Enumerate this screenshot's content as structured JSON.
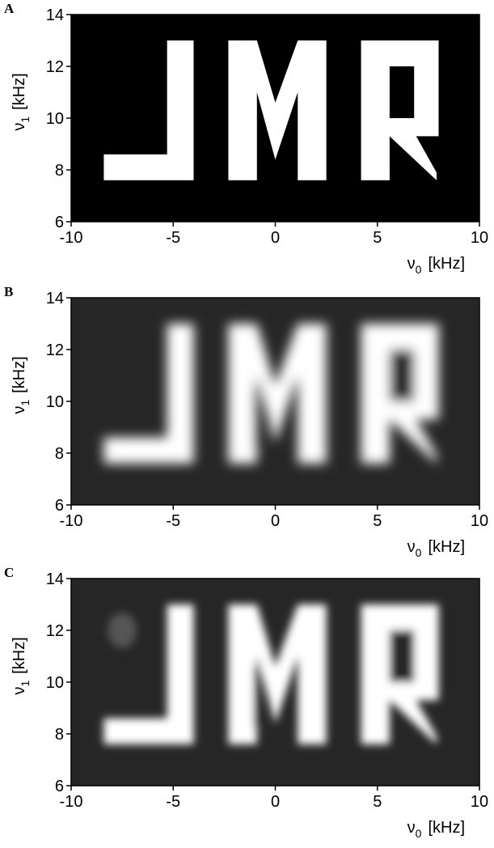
{
  "chart_data": [
    {
      "type": "image",
      "panel": "A",
      "xlim": [
        -10,
        10
      ],
      "ylim": [
        6,
        14
      ],
      "xticks": [
        -10,
        -5,
        0,
        5,
        10
      ],
      "yticks": [
        6,
        8,
        10,
        12,
        14
      ],
      "xlabel": {
        "symbol": "ν",
        "subscript": "0",
        "unit": "[kHz]"
      },
      "ylabel": {
        "symbol": "ν",
        "subscript": "1",
        "unit": "[kHz]"
      }
    },
    {
      "type": "image",
      "panel": "B",
      "xlim": [
        -10,
        10
      ],
      "ylim": [
        6,
        14
      ],
      "xticks": [
        -10,
        -5,
        0,
        5,
        10
      ],
      "yticks": [
        6,
        8,
        10,
        12,
        14
      ],
      "xlabel": {
        "symbol": "ν",
        "subscript": "0",
        "unit": "[kHz]"
      },
      "ylabel": {
        "symbol": "ν",
        "subscript": "1",
        "unit": "[kHz]"
      }
    },
    {
      "type": "image",
      "panel": "C",
      "xlim": [
        -10,
        10
      ],
      "ylim": [
        6,
        14
      ],
      "xticks": [
        -10,
        -5,
        0,
        5,
        10
      ],
      "yticks": [
        6,
        8,
        10,
        12,
        14
      ],
      "xlabel": {
        "symbol": "ν",
        "subscript": "0",
        "unit": "[kHz]"
      },
      "ylabel": {
        "symbol": "ν",
        "subscript": "1",
        "unit": "[kHz]"
      }
    }
  ]
}
